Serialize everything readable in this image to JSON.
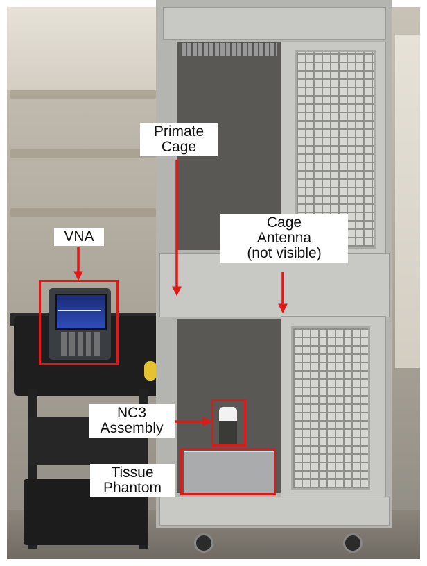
{
  "labels": {
    "primate_cage": "Primate\nCage",
    "vna": "VNA",
    "cage_antenna": "Cage\nAntenna\n(not visible)",
    "nc3_assembly": "NC3\nAssembly",
    "tissue_phantom": "Tissue\nPhantom"
  },
  "colors": {
    "annotation_red": "#e01818",
    "label_background": "#ffffff"
  }
}
